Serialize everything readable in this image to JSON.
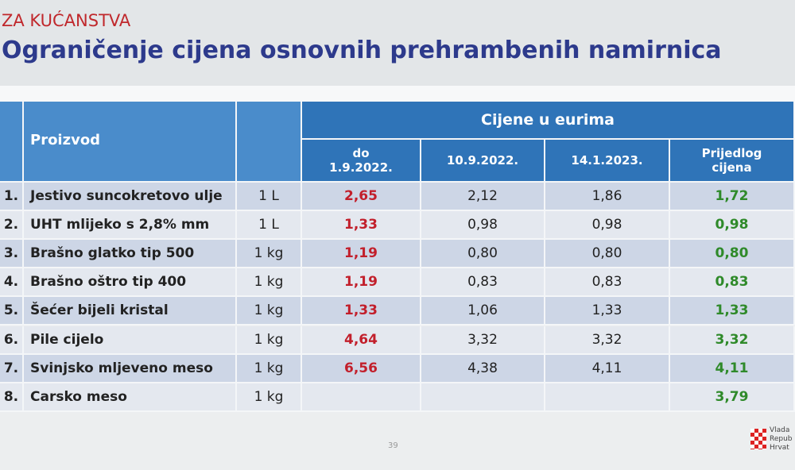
{
  "header": {
    "tag": "ZA KUĆANSTVA",
    "title": "Ograničenje cijena osnovnih prehrambenih namirnica"
  },
  "table": {
    "columns": {
      "product": "Proizvod",
      "price_group": "Cijene u eurima",
      "prices": [
        "do 1.9.2022.",
        "10.9.2022.",
        "14.1.2023.",
        "Prijedlog cijena"
      ]
    },
    "rows": [
      [
        "1.",
        "Jestivo suncokretovo ulje",
        "1 L",
        "2,65",
        "2,12",
        "1,86",
        "1,72"
      ],
      [
        "2.",
        "UHT mlijeko s 2,8% mm",
        "1 L",
        "1,33",
        "0,98",
        "0,98",
        "0,98"
      ],
      [
        "3.",
        "Brašno glatko tip 500",
        "1 kg",
        "1,19",
        "0,80",
        "0,80",
        "0,80"
      ],
      [
        "4.",
        "Brašno oštro tip 400",
        "1 kg",
        "1,19",
        "0,83",
        "0,83",
        "0,83"
      ],
      [
        "5.",
        "Šećer bijeli kristal",
        "1 kg",
        "1,33",
        "1,06",
        "1,33",
        "1,33"
      ],
      [
        "6.",
        "Pile cijelo",
        "1 kg",
        "4,64",
        "3,32",
        "3,32",
        "3,32"
      ],
      [
        "7.",
        "Svinjsko mljeveno meso",
        "1 kg",
        "6,56",
        "4,38",
        "4,11",
        "4,11"
      ],
      [
        "8.",
        "Carsko meso",
        "1 kg",
        null,
        null,
        null,
        "3,79"
      ]
    ]
  },
  "footer": {
    "page": "39",
    "logo_lines": [
      "Vlada",
      "Repub",
      "Hrvat"
    ]
  }
}
